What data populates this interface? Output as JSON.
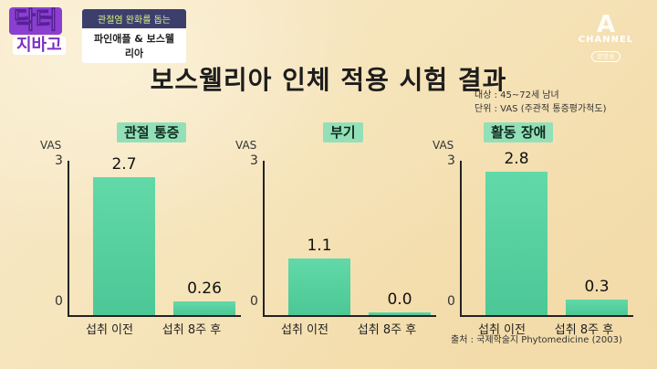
{
  "logo": {
    "top": "닥터",
    "bottom": "지바고"
  },
  "topic": {
    "line1": "관절염 완화를 돕는",
    "line2": "파인애플 & 보스웰리아"
  },
  "channel": {
    "mark": "A",
    "name": "CHANNEL",
    "sub": "본방송"
  },
  "title": "보스웰리아 인체 적용 시험 결과",
  "meta": {
    "subject": "대상 : 45~72세 남녀",
    "unit": "단위 : VAS (주관적 통증평가척도)"
  },
  "source": "출처 : 국제학술지 Phytomedicine (2003)",
  "colors": {
    "bar": "#4cc796",
    "label_bg": "#93e0b8"
  },
  "chart_data": [
    {
      "type": "bar",
      "title": "관절 통증",
      "ylabel": "VAS",
      "ylim": [
        0,
        3
      ],
      "yticks": [
        "3",
        "0"
      ],
      "categories": [
        "섭취 이전",
        "섭취 8주 후"
      ],
      "values": [
        2.7,
        0.26
      ],
      "value_labels": [
        "2.7",
        "0.26"
      ]
    },
    {
      "type": "bar",
      "title": "부기",
      "ylabel": "VAS",
      "ylim": [
        0,
        3
      ],
      "yticks": [
        "3",
        "0"
      ],
      "categories": [
        "섭취 이전",
        "섭취 8주 후"
      ],
      "values": [
        1.1,
        0.0
      ],
      "value_labels": [
        "1.1",
        "0.0"
      ]
    },
    {
      "type": "bar",
      "title": "활동 장애",
      "ylabel": "VAS",
      "ylim": [
        0,
        3
      ],
      "yticks": [
        "3",
        "0"
      ],
      "categories": [
        "섭취 이전",
        "섭취 8주 후"
      ],
      "values": [
        2.8,
        0.3
      ],
      "value_labels": [
        "2.8",
        "0.3"
      ]
    }
  ]
}
